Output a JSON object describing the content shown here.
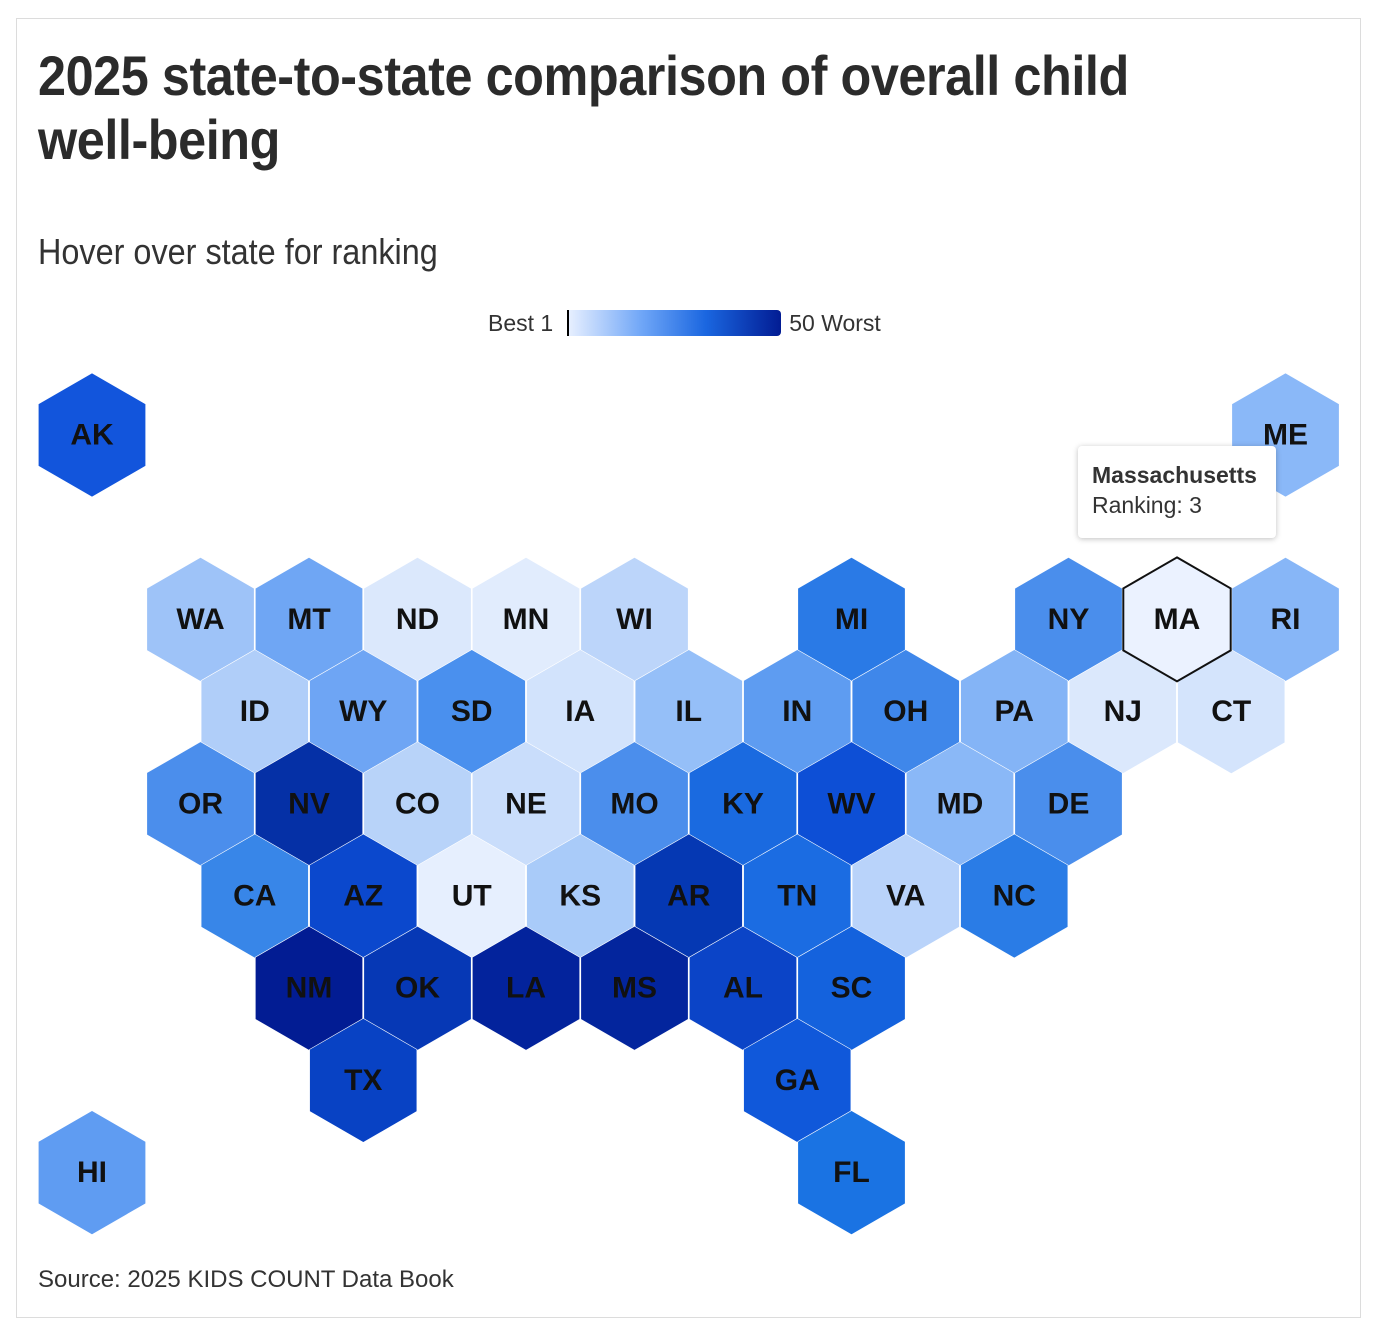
{
  "title": "2025 state-to-state comparison of overall child well-being",
  "subtitle": "Hover over state for ranking",
  "legend": {
    "low_label": "Best 1",
    "high_label": "50 Worst",
    "colors": [
      "#eaf1ff",
      "#6fa6f7",
      "#1a66e0",
      "#021c93"
    ]
  },
  "tooltip": {
    "state_name": "Massachusetts",
    "ranking_text": "Ranking: 3"
  },
  "source": "Source: 2025 KIDS COUNT Data Book",
  "chart_data": {
    "type": "heatmap",
    "value_scale": "ranking (1 = best, 50 = worst)",
    "highlighted": "MA",
    "states": [
      {
        "abbr": "AK",
        "row": 0,
        "col": 0,
        "color": "#1255dc"
      },
      {
        "abbr": "ME",
        "row": 0,
        "col": 11,
        "color": "#8ab8f8"
      },
      {
        "abbr": "WA",
        "row": 2,
        "col": 1,
        "color": "#9ec3f8"
      },
      {
        "abbr": "MT",
        "row": 2,
        "col": 2,
        "color": "#6fa6f4"
      },
      {
        "abbr": "ND",
        "row": 2,
        "col": 3,
        "color": "#dbe8fc"
      },
      {
        "abbr": "MN",
        "row": 2,
        "col": 4,
        "color": "#e1ecfd"
      },
      {
        "abbr": "WI",
        "row": 2,
        "col": 5,
        "color": "#bcd5fa"
      },
      {
        "abbr": "MI",
        "row": 2,
        "col": 7,
        "color": "#2a7ae6"
      },
      {
        "abbr": "NY",
        "row": 2,
        "col": 9,
        "color": "#4a8eec"
      },
      {
        "abbr": "MA",
        "row": 2,
        "col": 10,
        "color": "#ebf2ff"
      },
      {
        "abbr": "RI",
        "row": 2,
        "col": 11,
        "color": "#87b6f7"
      },
      {
        "abbr": "ID",
        "row": 3,
        "col": 1,
        "color": "#b0cef9"
      },
      {
        "abbr": "WY",
        "row": 3,
        "col": 2,
        "color": "#6ea5f4"
      },
      {
        "abbr": "SD",
        "row": 3,
        "col": 3,
        "color": "#4a90ee"
      },
      {
        "abbr": "IA",
        "row": 3,
        "col": 4,
        "color": "#d2e3fc"
      },
      {
        "abbr": "IL",
        "row": 3,
        "col": 5,
        "color": "#95bff8"
      },
      {
        "abbr": "IN",
        "row": 3,
        "col": 6,
        "color": "#5e9cf1"
      },
      {
        "abbr": "OH",
        "row": 3,
        "col": 7,
        "color": "#3f87ea"
      },
      {
        "abbr": "PA",
        "row": 3,
        "col": 8,
        "color": "#84b4f6"
      },
      {
        "abbr": "NJ",
        "row": 3,
        "col": 9,
        "color": "#dbe8fc"
      },
      {
        "abbr": "CT",
        "row": 3,
        "col": 10,
        "color": "#d4e4fc"
      },
      {
        "abbr": "OR",
        "row": 4,
        "col": 1,
        "color": "#4b8eec"
      },
      {
        "abbr": "NV",
        "row": 4,
        "col": 2,
        "color": "#0530a6"
      },
      {
        "abbr": "CO",
        "row": 4,
        "col": 3,
        "color": "#b8d3f9"
      },
      {
        "abbr": "NE",
        "row": 4,
        "col": 4,
        "color": "#c9ddfb"
      },
      {
        "abbr": "MO",
        "row": 4,
        "col": 5,
        "color": "#4b8eec"
      },
      {
        "abbr": "KY",
        "row": 4,
        "col": 6,
        "color": "#1a6ae0"
      },
      {
        "abbr": "WV",
        "row": 4,
        "col": 7,
        "color": "#0d4fd6"
      },
      {
        "abbr": "MD",
        "row": 4,
        "col": 8,
        "color": "#8ab8f7"
      },
      {
        "abbr": "DE",
        "row": 4,
        "col": 9,
        "color": "#4a8eec"
      },
      {
        "abbr": "CA",
        "row": 5,
        "col": 1,
        "color": "#3886e8"
      },
      {
        "abbr": "AZ",
        "row": 5,
        "col": 2,
        "color": "#0b48cd"
      },
      {
        "abbr": "UT",
        "row": 5,
        "col": 3,
        "color": "#e6effe"
      },
      {
        "abbr": "KS",
        "row": 5,
        "col": 4,
        "color": "#a9cbf9"
      },
      {
        "abbr": "AR",
        "row": 5,
        "col": 5,
        "color": "#0538b3"
      },
      {
        "abbr": "TN",
        "row": 5,
        "col": 6,
        "color": "#1b6ce2"
      },
      {
        "abbr": "VA",
        "row": 5,
        "col": 7,
        "color": "#b9d3fa"
      },
      {
        "abbr": "NC",
        "row": 5,
        "col": 8,
        "color": "#2a7ce6"
      },
      {
        "abbr": "NM",
        "row": 6,
        "col": 2,
        "color": "#021c93"
      },
      {
        "abbr": "OK",
        "row": 6,
        "col": 3,
        "color": "#0638b5"
      },
      {
        "abbr": "LA",
        "row": 6,
        "col": 4,
        "color": "#03239c"
      },
      {
        "abbr": "MS",
        "row": 6,
        "col": 5,
        "color": "#03259d"
      },
      {
        "abbr": "AL",
        "row": 6,
        "col": 6,
        "color": "#0b44c7"
      },
      {
        "abbr": "SC",
        "row": 6,
        "col": 7,
        "color": "#1462dd"
      },
      {
        "abbr": "TX",
        "row": 7,
        "col": 2,
        "color": "#0842c4"
      },
      {
        "abbr": "GA",
        "row": 7,
        "col": 6,
        "color": "#1058da"
      },
      {
        "abbr": "HI",
        "row": 8,
        "col": 0,
        "color": "#5f9cf2"
      },
      {
        "abbr": "FL",
        "row": 8,
        "col": 7,
        "color": "#1a73e3"
      }
    ]
  }
}
